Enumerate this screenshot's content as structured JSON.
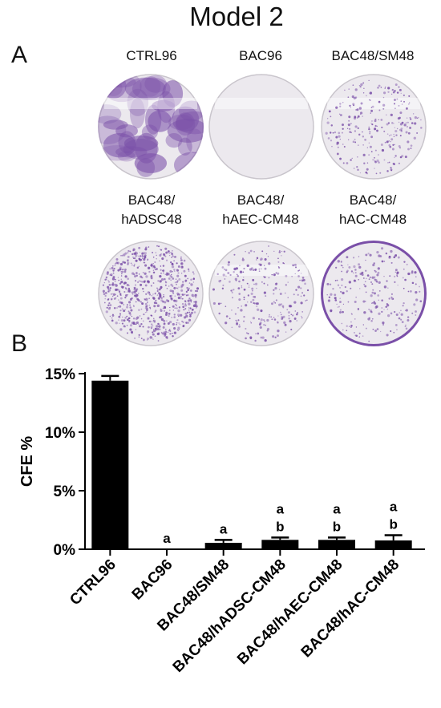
{
  "figure": {
    "title": "Model 2",
    "panel_a": "A",
    "panel_b": "B"
  },
  "plates": [
    {
      "label": "CTRL96",
      "density": "heavy"
    },
    {
      "label": "BAC96",
      "density": "none"
    },
    {
      "label": "BAC48/SM48",
      "density": "light"
    },
    {
      "label": "BAC48/\nhADSC48",
      "density": "medium"
    },
    {
      "label": "BAC48/\nhAEC-CM48",
      "density": "light"
    },
    {
      "label": "BAC48/\nhAC-CM48",
      "density": "light-rim"
    }
  ],
  "colors": {
    "stain": "#7a4fa8",
    "plate_bg": "#ece9ee",
    "bar": "#000000"
  },
  "chart_data": {
    "type": "bar",
    "ylabel": "CFE %",
    "xlabel": "",
    "ylim": [
      0,
      15
    ],
    "yticks": [
      0,
      5,
      10,
      15
    ],
    "ytick_labels": [
      "0%",
      "5%",
      "10%",
      "15%"
    ],
    "categories": [
      "CTRL96",
      "BAC96",
      "BAC48/SM48",
      "BAC48/hADSC-CM48",
      "BAC48/hAEC-CM48",
      "BAC48/hAC-CM48"
    ],
    "values": [
      14.4,
      0,
      0.55,
      0.8,
      0.8,
      0.75
    ],
    "errors": [
      0.4,
      0,
      0.25,
      0.2,
      0.2,
      0.45
    ],
    "annotations": [
      [],
      [
        "a"
      ],
      [
        "a"
      ],
      [
        "a",
        "b"
      ],
      [
        "a",
        "b"
      ],
      [
        "a",
        "b"
      ]
    ]
  }
}
